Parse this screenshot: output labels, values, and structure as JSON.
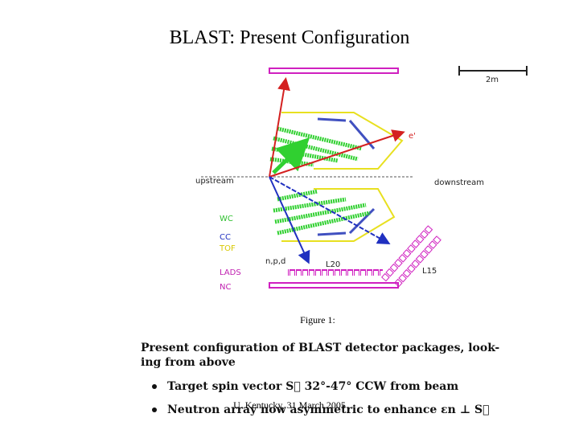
{
  "header": {
    "title": "BLAST: Present Configuration"
  },
  "figure": {
    "scale_label": "2m",
    "labels": {
      "upstream": "upstream",
      "downstream": "downstream",
      "electron": "e'",
      "hadron": "n,p,d",
      "l20": "L20",
      "l15": "L15"
    },
    "legend": [
      "WC",
      "CC",
      "TOF",
      "LADS",
      "NC"
    ],
    "caption_title": "Figure 1:",
    "caption_lines": [
      "Present configuration of BLAST detector packages, look-",
      "ing from above"
    ],
    "bullets": [
      "Target spin vector S⃗ 32°-47° CCW from beam",
      "Neutron array now asymmetric to enhance εn ⊥ S⃗"
    ]
  },
  "footer": {
    "text": "U. Kentucky, 31 March 2005"
  }
}
